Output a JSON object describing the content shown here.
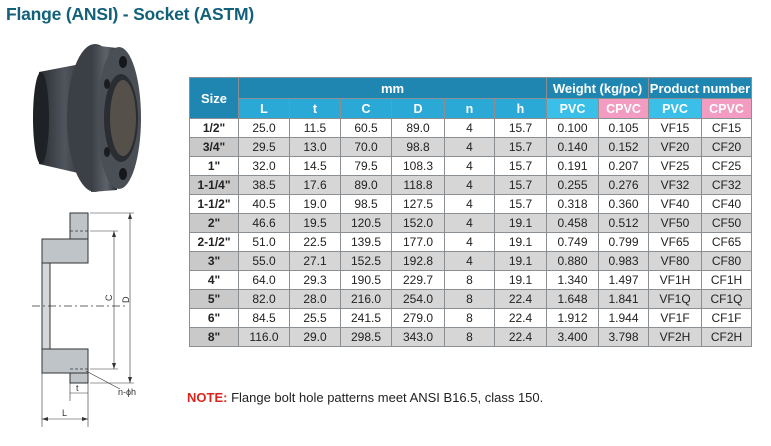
{
  "title": "Flange (ANSI) - Socket (ASTM)",
  "table": {
    "size_header": "Size",
    "mm_header": "mm",
    "weight_header": "Weight (kg/pc)",
    "product_header": "Product number",
    "dim_cols": [
      "L",
      "t",
      "C",
      "D",
      "n",
      "h"
    ],
    "weight_cols": [
      "PVC",
      "CPVC"
    ],
    "product_cols": [
      "PVC",
      "CPVC"
    ],
    "rows": [
      [
        "1/2\"",
        "25.0",
        "11.5",
        "60.5",
        "89.0",
        "4",
        "15.7",
        "0.100",
        "0.105",
        "VF15",
        "CF15"
      ],
      [
        "3/4\"",
        "29.5",
        "13.0",
        "70.0",
        "98.8",
        "4",
        "15.7",
        "0.140",
        "0.152",
        "VF20",
        "CF20"
      ],
      [
        "1\"",
        "32.0",
        "14.5",
        "79.5",
        "108.3",
        "4",
        "15.7",
        "0.191",
        "0.207",
        "VF25",
        "CF25"
      ],
      [
        "1-1/4\"",
        "38.5",
        "17.6",
        "89.0",
        "118.8",
        "4",
        "15.7",
        "0.255",
        "0.276",
        "VF32",
        "CF32"
      ],
      [
        "1-1/2\"",
        "40.5",
        "19.0",
        "98.5",
        "127.5",
        "4",
        "15.7",
        "0.318",
        "0.360",
        "VF40",
        "CF40"
      ],
      [
        "2\"",
        "46.6",
        "19.5",
        "120.5",
        "152.0",
        "4",
        "19.1",
        "0.458",
        "0.512",
        "VF50",
        "CF50"
      ],
      [
        "2-1/2\"",
        "51.0",
        "22.5",
        "139.5",
        "177.0",
        "4",
        "19.1",
        "0.749",
        "0.799",
        "VF65",
        "CF65"
      ],
      [
        "3\"",
        "55.0",
        "27.1",
        "152.5",
        "192.8",
        "4",
        "19.1",
        "0.880",
        "0.983",
        "VF80",
        "CF80"
      ],
      [
        "4\"",
        "64.0",
        "29.3",
        "190.5",
        "229.7",
        "8",
        "19.1",
        "1.340",
        "1.497",
        "VF1H",
        "CF1H"
      ],
      [
        "5\"",
        "82.0",
        "28.0",
        "216.0",
        "254.0",
        "8",
        "22.4",
        "1.648",
        "1.841",
        "VF1Q",
        "CF1Q"
      ],
      [
        "6\"",
        "84.5",
        "25.5",
        "241.5",
        "279.0",
        "8",
        "22.4",
        "1.912",
        "1.944",
        "VF1F",
        "CF1F"
      ],
      [
        "8\"",
        "116.0",
        "29.0",
        "298.5",
        "343.0",
        "8",
        "22.4",
        "3.400",
        "3.798",
        "VF2H",
        "CF2H"
      ]
    ]
  },
  "note": {
    "lead": "NOTE:",
    "text": " Flange bolt hole patterns meet ANSI B16.5, class 150."
  },
  "drawing": {
    "labels": {
      "L": "L",
      "t": "t",
      "C": "C",
      "D": "D",
      "hole": "n-ϕh"
    }
  },
  "colors": {
    "title": "#12607a",
    "header_blue": "#2ba9d6",
    "header_dark": "#1f86b2",
    "pvc": "#3ac0e8",
    "cpvc": "#f19cc0",
    "shade": "#d6d6d6",
    "note_red": "#d9261c"
  }
}
